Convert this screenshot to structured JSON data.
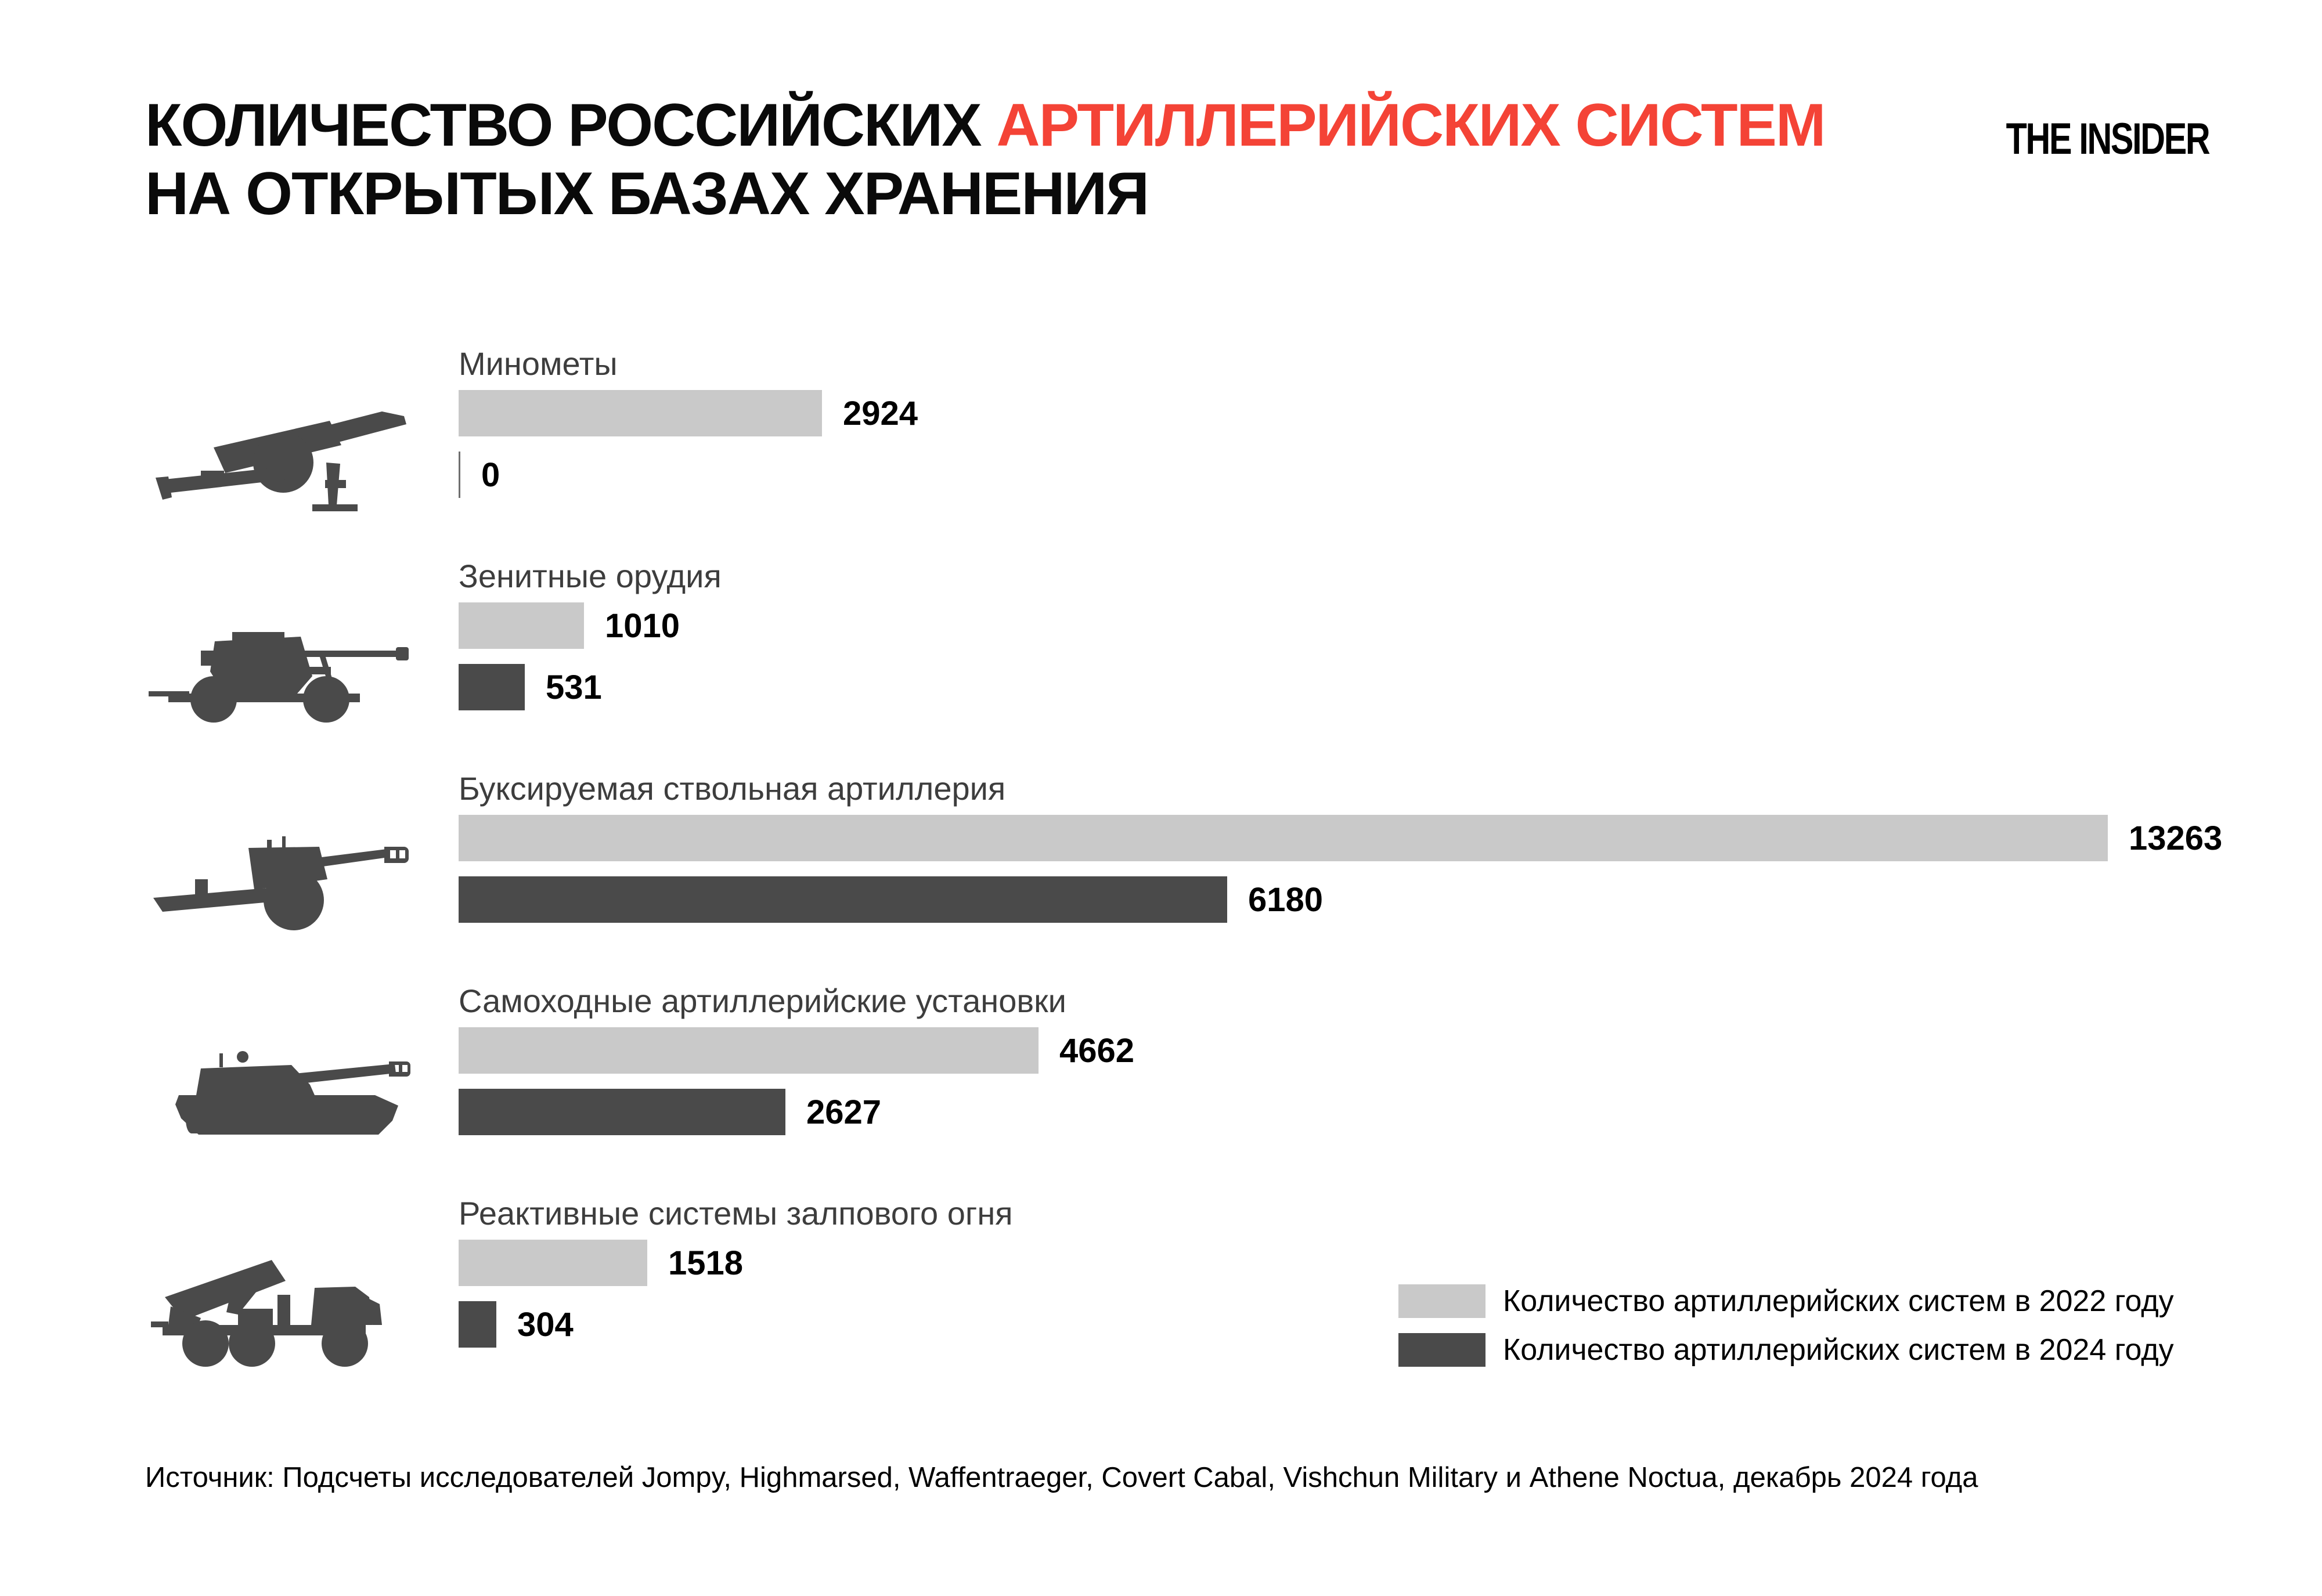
{
  "title": {
    "line1_black": "КОЛИЧЕСТВО РОССИЙСКИХ ",
    "line1_red": "АРТИЛЛЕРИЙСКИХ СИСТЕМ",
    "line2": "НА ОТКРЫТЫХ БАЗАХ ХРАНЕНИЯ"
  },
  "logo": "THE INSIDER",
  "legend": [
    {
      "label": "Количество артиллерийских систем в 2022 году",
      "color": "#c9c9c9"
    },
    {
      "label": "Количество артиллерийских систем в 2024 году",
      "color": "#4a4a4a"
    }
  ],
  "source": "Источник: Подсчеты исследователей Jompy, Highmarsed, Waffentraeger, Covert Cabal, Vishchun Military и Athene Noctua, декабрь 2024 года",
  "chart_data": {
    "type": "bar",
    "orientation": "horizontal",
    "title": "Количество российских артиллерийских систем на открытых базах хранения",
    "categories": [
      "Минометы",
      "Зенитные орудия",
      "Буксируемая ствольная артиллерия",
      "Самоходные артиллерийские установки",
      "Реактивные системы залпового огня"
    ],
    "series": [
      {
        "name": "Количество артиллерийских систем в 2022 году",
        "color": "#c9c9c9",
        "values": [
          2924,
          1010,
          13263,
          4662,
          1518
        ]
      },
      {
        "name": "Количество артиллерийских систем в 2024 году",
        "color": "#4a4a4a",
        "values": [
          0,
          531,
          6180,
          2627,
          304
        ]
      }
    ],
    "xlim": [
      0,
      13263
    ],
    "value_labels": true,
    "grid": false,
    "legend_position": "bottom-right",
    "icons": [
      "mortar-icon",
      "anti-aircraft-gun-icon",
      "towed-artillery-icon",
      "self-propelled-artillery-icon",
      "mlrs-truck-icon"
    ],
    "accent_color": "#f44336",
    "zero_tick_color": "#6e6e6e"
  }
}
